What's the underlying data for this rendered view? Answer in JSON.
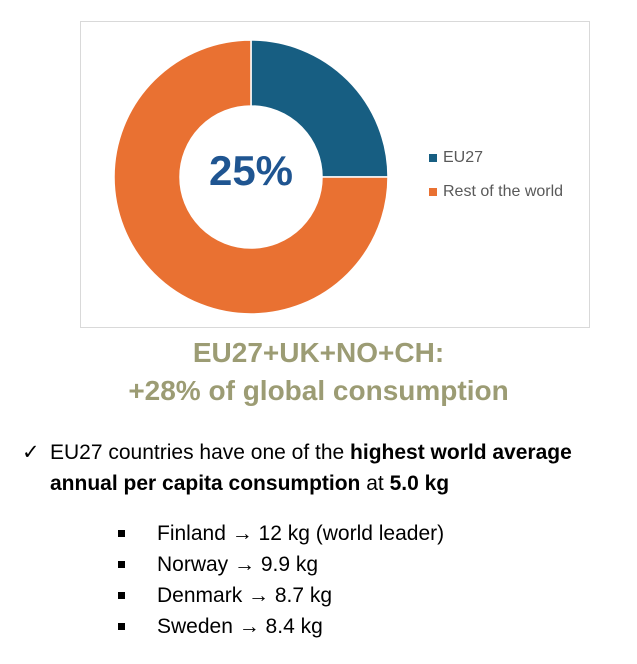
{
  "chart_data": {
    "type": "pie",
    "style": "donut",
    "categories": [
      "EU27",
      "Rest of the world"
    ],
    "values": [
      25,
      75
    ],
    "colors": [
      "#175e82",
      "#e97132"
    ],
    "center_label": "25%",
    "center_label_color": "#1f5591",
    "legend_placement": "right"
  },
  "legend": {
    "items": [
      {
        "label": "EU27",
        "color": "#175e82"
      },
      {
        "label": "Rest of the world",
        "color": "#e97132"
      }
    ]
  },
  "headline": {
    "line1": "EU27+UK+NO+CH:",
    "line2": "+28% of global consumption",
    "color": "#9c9c74"
  },
  "main_bullet": {
    "icon": "check-icon",
    "check": "✓",
    "part1": "EU27 countries have one of the ",
    "bold1": "highest world average annual per capita consumption",
    "part2": " at ",
    "bold2": "5.0 kg"
  },
  "sub_bullets": [
    {
      "text": "Finland → 12 kg (world leader)"
    },
    {
      "text": "Norway → 9.9 kg"
    },
    {
      "text": "Denmark → 8.7 kg"
    },
    {
      "text": "Sweden → 8.4 kg"
    }
  ]
}
